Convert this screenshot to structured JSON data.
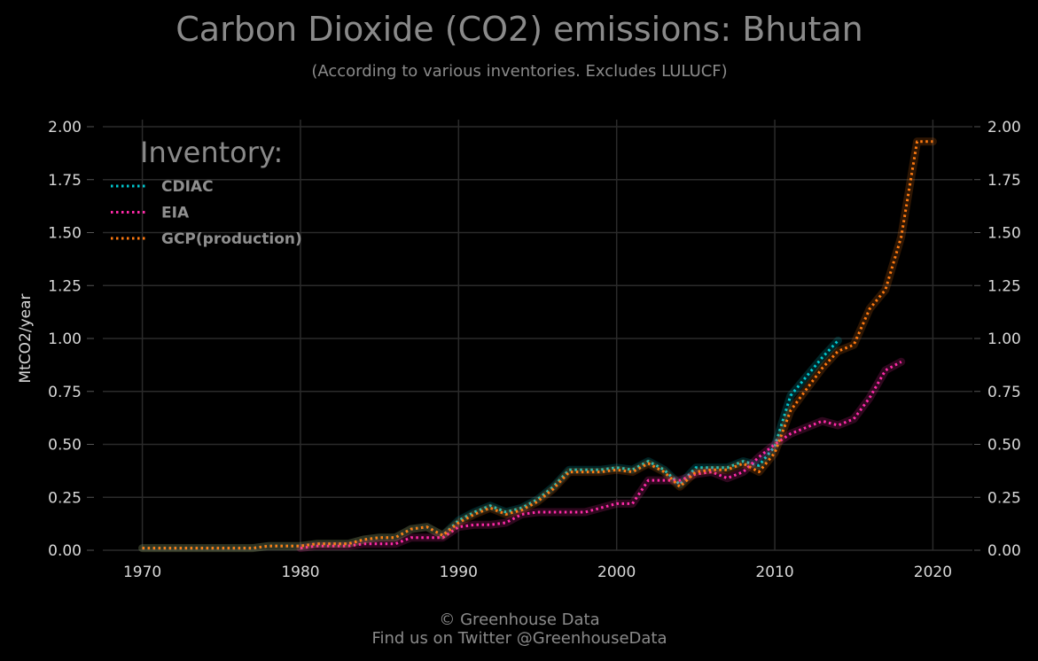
{
  "header": {
    "title": "Carbon Dioxide (CO2) emissions: Bhutan",
    "subtitle": "(According to various inventories. Excludes LULUCF)"
  },
  "footer": {
    "line1": "© Greenhouse Data",
    "line2": "Find us on Twitter @GreenhouseData"
  },
  "colors": {
    "background": "#000000",
    "grid": "#2b2b2b",
    "text_muted": "#8a8a8a",
    "tick_text": "#d8d8d8"
  },
  "chart_data": {
    "type": "line",
    "title": "Carbon Dioxide (CO2) emissions: Bhutan",
    "subtitle": "(According to various inventories. Excludes LULUCF)",
    "xlabel": "",
    "ylabel": "MtCO2/year",
    "xlim": [
      1967.5,
      2022.5
    ],
    "ylim": [
      0,
      2.0
    ],
    "x_ticks": [
      1970,
      1980,
      1990,
      2000,
      2010,
      2020
    ],
    "x_tick_labels": [
      "1970",
      "1980",
      "1990",
      "2000",
      "2010",
      "2020"
    ],
    "y_ticks": [
      0,
      0.25,
      0.5,
      0.75,
      1.0,
      1.25,
      1.5,
      1.75,
      2.0
    ],
    "y_tick_labels": [
      "0.00",
      "0.25",
      "0.50",
      "0.75",
      "1.00",
      "1.25",
      "1.50",
      "1.75",
      "2.00"
    ],
    "y_axis_both_sides": true,
    "grid": true,
    "line_style": "dotted",
    "legend_title": "Inventory:",
    "legend_position": "top-left",
    "series": [
      {
        "name": "CDIAC",
        "color": "#00c8d0",
        "x": [
          1970,
          1971,
          1972,
          1973,
          1974,
          1975,
          1976,
          1977,
          1978,
          1979,
          1980,
          1981,
          1982,
          1983,
          1984,
          1985,
          1986,
          1987,
          1988,
          1989,
          1990,
          1991,
          1992,
          1993,
          1994,
          1995,
          1996,
          1997,
          1998,
          1999,
          2000,
          2001,
          2002,
          2003,
          2004,
          2005,
          2006,
          2007,
          2008,
          2009,
          2010,
          2011,
          2012,
          2013,
          2014
        ],
        "y": [
          0.01,
          0.01,
          0.01,
          0.01,
          0.01,
          0.01,
          0.01,
          0.01,
          0.02,
          0.02,
          0.02,
          0.03,
          0.03,
          0.03,
          0.05,
          0.06,
          0.06,
          0.1,
          0.11,
          0.07,
          0.14,
          0.18,
          0.21,
          0.18,
          0.2,
          0.24,
          0.3,
          0.38,
          0.38,
          0.38,
          0.39,
          0.38,
          0.42,
          0.38,
          0.31,
          0.39,
          0.39,
          0.39,
          0.42,
          0.4,
          0.49,
          0.73,
          0.82,
          0.91,
          0.99
        ]
      },
      {
        "name": "EIA",
        "color": "#ff2aa8",
        "x": [
          1980,
          1981,
          1982,
          1983,
          1984,
          1985,
          1986,
          1987,
          1988,
          1989,
          1990,
          1991,
          1992,
          1993,
          1994,
          1995,
          1996,
          1997,
          1998,
          1999,
          2000,
          2001,
          2002,
          2003,
          2004,
          2005,
          2006,
          2007,
          2008,
          2009,
          2010,
          2011,
          2012,
          2013,
          2014,
          2015,
          2016,
          2017,
          2018
        ],
        "y": [
          0.01,
          0.02,
          0.02,
          0.02,
          0.03,
          0.03,
          0.03,
          0.06,
          0.06,
          0.06,
          0.11,
          0.12,
          0.12,
          0.13,
          0.17,
          0.18,
          0.18,
          0.18,
          0.18,
          0.2,
          0.22,
          0.22,
          0.33,
          0.33,
          0.33,
          0.36,
          0.37,
          0.34,
          0.37,
          0.44,
          0.5,
          0.55,
          0.58,
          0.61,
          0.59,
          0.62,
          0.72,
          0.85,
          0.89
        ]
      },
      {
        "name": "GCP(production)",
        "color": "#ff7a10",
        "x": [
          1970,
          1971,
          1972,
          1973,
          1974,
          1975,
          1976,
          1977,
          1978,
          1979,
          1980,
          1981,
          1982,
          1983,
          1984,
          1985,
          1986,
          1987,
          1988,
          1989,
          1990,
          1991,
          1992,
          1993,
          1994,
          1995,
          1996,
          1997,
          1998,
          1999,
          2000,
          2001,
          2002,
          2003,
          2004,
          2005,
          2006,
          2007,
          2008,
          2009,
          2010,
          2011,
          2012,
          2013,
          2014,
          2015,
          2016,
          2017,
          2018,
          2019,
          2020
        ],
        "y": [
          0.01,
          0.01,
          0.01,
          0.01,
          0.01,
          0.01,
          0.01,
          0.01,
          0.02,
          0.02,
          0.02,
          0.03,
          0.03,
          0.03,
          0.05,
          0.06,
          0.06,
          0.1,
          0.11,
          0.07,
          0.13,
          0.17,
          0.2,
          0.17,
          0.19,
          0.23,
          0.29,
          0.37,
          0.37,
          0.37,
          0.38,
          0.37,
          0.41,
          0.37,
          0.3,
          0.37,
          0.38,
          0.38,
          0.41,
          0.37,
          0.46,
          0.66,
          0.76,
          0.86,
          0.94,
          0.97,
          1.14,
          1.23,
          1.48,
          1.93,
          1.93
        ]
      }
    ]
  }
}
